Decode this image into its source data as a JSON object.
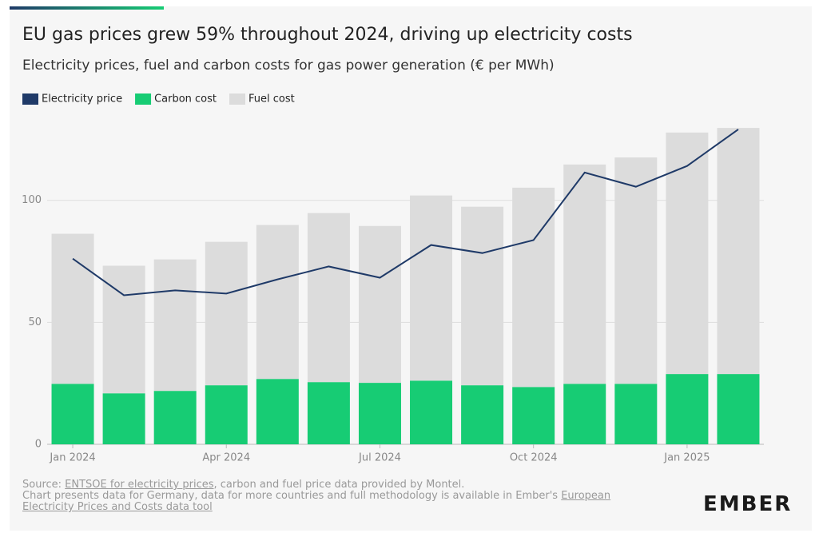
{
  "chart_data": {
    "type": "bar-line",
    "title": "EU gas prices grew 59% throughout 2024, driving up electricity costs",
    "subtitle": "Electricity prices, fuel and carbon costs for gas power generation (€ per MWh)",
    "categories": [
      "Jan 2024",
      null,
      null,
      "Apr 2024",
      null,
      null,
      "Jul 2024",
      null,
      null,
      "Oct 2024",
      null,
      null,
      "Jan 2025",
      null
    ],
    "series": [
      {
        "name": "Electricity price",
        "type": "line",
        "color": "#1f3a68",
        "values": [
          76.1,
          61.1,
          63.1,
          61.8,
          67.6,
          72.9,
          68.3,
          81.7,
          78.4,
          83.7,
          111.4,
          105.6,
          114.1,
          129.1
        ]
      },
      {
        "name": "Carbon cost",
        "type": "bar",
        "color": "#17cc74",
        "values": [
          24.8,
          20.9,
          21.9,
          24.2,
          26.8,
          25.5,
          25.2,
          26.1,
          24.2,
          23.5,
          24.8,
          24.8,
          28.8,
          28.8
        ]
      },
      {
        "name": "Fuel cost",
        "type": "bar",
        "color": "#dcdcdc",
        "values": [
          61.5,
          52.3,
          53.9,
          58.8,
          63.1,
          69.3,
          64.3,
          75.9,
          73.2,
          81.7,
          89.9,
          92.8,
          99.0,
          100.9
        ]
      }
    ],
    "ylim": [
      0,
      133
    ],
    "yticks": [
      0,
      50,
      100
    ],
    "grid": true,
    "stacked": true
  },
  "footer": {
    "source_label": "Source: ",
    "source_link": "ENTSOE for electricity prices",
    "source_rest": ", carbon and fuel price data provided by Montel.",
    "note": "Chart presents data for Germany, data for more countries and full methodology is available in Ember's ",
    "note_link": "European Electricity Prices and Costs data tool",
    "logo": "EMBER"
  }
}
